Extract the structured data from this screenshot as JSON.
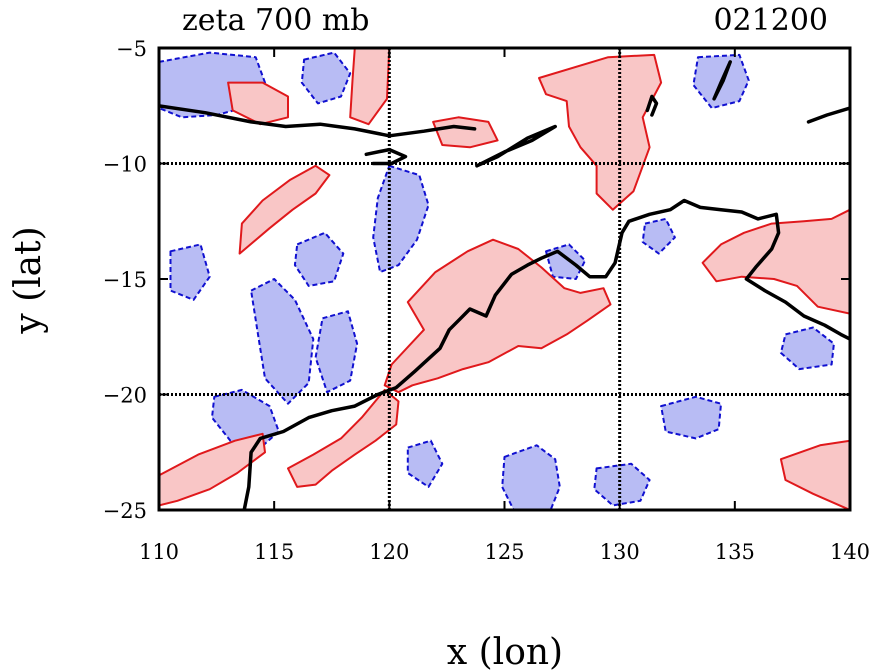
{
  "chart_data": {
    "type": "contour",
    "title": "zeta 700 mb",
    "subtitle": "021200",
    "xlabel": "x (lon)",
    "ylabel": "y (lat)",
    "xlim": [
      110,
      140
    ],
    "ylim": [
      -25,
      -5
    ],
    "x_ticks": [
      110,
      115,
      120,
      125,
      130,
      135,
      140
    ],
    "y_ticks": [
      -5,
      -10,
      -15,
      -20,
      -25
    ],
    "x_tick_labels": [
      "110",
      "115",
      "120",
      "125",
      "130",
      "135",
      "140"
    ],
    "y_tick_labels": [
      "−5",
      "−10",
      "−15",
      "−20",
      "−25"
    ],
    "grid_lines": {
      "x": [
        120,
        130
      ],
      "y": [
        -10,
        -20
      ]
    },
    "grid": "dotted",
    "legend": "none",
    "colors": {
      "positive_fill": "#f9c6c6",
      "positive_line": "#e0191c",
      "negative_fill": "#b8bcf4",
      "negative_line": "#1010d0",
      "coastline": "#000000"
    },
    "positive_regions": [
      [
        [
          126.5,
          -6.3
        ],
        [
          129.5,
          -5.4
        ],
        [
          131.5,
          -5.3
        ],
        [
          131.8,
          -6.5
        ],
        [
          131,
          -8
        ],
        [
          131.3,
          -9.3
        ],
        [
          130.6,
          -11.2
        ],
        [
          129.7,
          -12
        ],
        [
          129,
          -11.3
        ],
        [
          129,
          -10.1
        ],
        [
          128.3,
          -9.3
        ],
        [
          127.8,
          -8.4
        ],
        [
          127.7,
          -7.3
        ],
        [
          126.8,
          -7
        ]
      ],
      [
        [
          120.8,
          -16
        ],
        [
          122,
          -14.7
        ],
        [
          123.4,
          -13.8
        ],
        [
          124.5,
          -13.3
        ],
        [
          125.6,
          -13.7
        ],
        [
          126.6,
          -14.5
        ],
        [
          127.6,
          -15.4
        ],
        [
          128.3,
          -15.6
        ],
        [
          129.3,
          -15.4
        ],
        [
          129.6,
          -16.1
        ],
        [
          128.6,
          -16.8
        ],
        [
          127.7,
          -17.4
        ],
        [
          126.6,
          -18
        ],
        [
          125.6,
          -17.9
        ],
        [
          124.3,
          -18.6
        ],
        [
          123.2,
          -18.9
        ],
        [
          122.1,
          -19.3
        ],
        [
          121,
          -19.6
        ],
        [
          120.4,
          -19.9
        ],
        [
          119.8,
          -19.6
        ],
        [
          120.1,
          -18.7
        ],
        [
          121.5,
          -17.2
        ]
      ],
      [
        [
          119.8,
          -19.8
        ],
        [
          120.4,
          -20.3
        ],
        [
          120.3,
          -21.3
        ],
        [
          119.4,
          -22
        ],
        [
          118.5,
          -22.6
        ],
        [
          117.5,
          -23.3
        ],
        [
          116.8,
          -23.9
        ],
        [
          116,
          -24
        ],
        [
          115.6,
          -23.2
        ],
        [
          116.7,
          -22.6
        ],
        [
          117.9,
          -21.9
        ],
        [
          118.8,
          -21
        ]
      ],
      [
        [
          110,
          -23.5
        ],
        [
          111.7,
          -22.6
        ],
        [
          113.3,
          -22
        ],
        [
          114.5,
          -21.7
        ],
        [
          114.6,
          -22.5
        ],
        [
          113.4,
          -23.4
        ],
        [
          112.2,
          -24.1
        ],
        [
          110.8,
          -24.6
        ],
        [
          110,
          -24.8
        ]
      ],
      [
        [
          113.5,
          -13.9
        ],
        [
          114.8,
          -12.8
        ],
        [
          115.8,
          -12
        ],
        [
          116.8,
          -11.3
        ],
        [
          117.4,
          -10.5
        ],
        [
          116.8,
          -10.1
        ],
        [
          115.7,
          -10.7
        ],
        [
          114.5,
          -11.6
        ],
        [
          113.6,
          -12.6
        ]
      ],
      [
        [
          139.2,
          -12.4
        ],
        [
          140,
          -12
        ],
        [
          140,
          -16.5
        ],
        [
          138.6,
          -16.2
        ],
        [
          137.7,
          -15.3
        ],
        [
          136.7,
          -15
        ],
        [
          135.3,
          -14.9
        ],
        [
          134.2,
          -15.1
        ],
        [
          133.6,
          -14.3
        ],
        [
          134.4,
          -13.5
        ],
        [
          135.4,
          -13
        ],
        [
          136.6,
          -12.6
        ],
        [
          138,
          -12.5
        ]
      ],
      [
        [
          121.9,
          -8.2
        ],
        [
          123,
          -8
        ],
        [
          124.3,
          -8.2
        ],
        [
          124.7,
          -9
        ],
        [
          123.5,
          -9.3
        ],
        [
          122.3,
          -9.2
        ]
      ],
      [
        [
          118.5,
          -5
        ],
        [
          120,
          -5
        ],
        [
          119.9,
          -7.2
        ],
        [
          119.1,
          -8.3
        ],
        [
          118.3,
          -8
        ],
        [
          118.4,
          -6.4
        ]
      ],
      [
        [
          113,
          -6.5
        ],
        [
          114.5,
          -6.5
        ],
        [
          115.6,
          -7.1
        ],
        [
          115.6,
          -8
        ],
        [
          114.4,
          -8.3
        ],
        [
          113.2,
          -7.7
        ]
      ],
      [
        [
          137,
          -22.8
        ],
        [
          138.7,
          -22.2
        ],
        [
          140,
          -22
        ],
        [
          140,
          -25
        ],
        [
          138.4,
          -24.3
        ],
        [
          137.2,
          -23.7
        ]
      ]
    ],
    "negative_regions": [
      [
        [
          110,
          -5.6
        ],
        [
          112.2,
          -5.2
        ],
        [
          114.2,
          -5.4
        ],
        [
          114.6,
          -6.5
        ],
        [
          114,
          -7.5
        ],
        [
          112.5,
          -7.9
        ],
        [
          111,
          -8
        ],
        [
          110,
          -7.6
        ]
      ],
      [
        [
          116.3,
          -5.5
        ],
        [
          117.6,
          -5.2
        ],
        [
          118.3,
          -6.1
        ],
        [
          117.9,
          -7.1
        ],
        [
          116.9,
          -7.4
        ],
        [
          116.2,
          -6.5
        ]
      ],
      [
        [
          120,
          -10.1
        ],
        [
          121.3,
          -10.5
        ],
        [
          121.7,
          -11.8
        ],
        [
          121.2,
          -13.3
        ],
        [
          120.4,
          -14.4
        ],
        [
          119.6,
          -14.7
        ],
        [
          119.3,
          -13.2
        ],
        [
          119.5,
          -11.5
        ]
      ],
      [
        [
          114,
          -15.5
        ],
        [
          115,
          -15
        ],
        [
          115.9,
          -15.9
        ],
        [
          116.7,
          -17.6
        ],
        [
          116.5,
          -19.5
        ],
        [
          115.6,
          -20.4
        ],
        [
          114.6,
          -19.3
        ],
        [
          114.3,
          -17.4
        ]
      ],
      [
        [
          117.1,
          -16.7
        ],
        [
          118.2,
          -16.4
        ],
        [
          118.6,
          -17.8
        ],
        [
          118.3,
          -19.4
        ],
        [
          117.3,
          -19.9
        ],
        [
          116.8,
          -18.4
        ]
      ],
      [
        [
          116,
          -13.5
        ],
        [
          117.2,
          -13
        ],
        [
          118,
          -13.9
        ],
        [
          117.6,
          -15.1
        ],
        [
          116.5,
          -15.3
        ],
        [
          115.9,
          -14.4
        ]
      ],
      [
        [
          110.5,
          -13.8
        ],
        [
          111.8,
          -13.5
        ],
        [
          112.2,
          -14.9
        ],
        [
          111.5,
          -15.9
        ],
        [
          110.5,
          -15.5
        ]
      ],
      [
        [
          112.4,
          -20.1
        ],
        [
          113.6,
          -19.8
        ],
        [
          114.8,
          -20.5
        ],
        [
          115.2,
          -21.6
        ],
        [
          114.3,
          -22.4
        ],
        [
          113.1,
          -22
        ],
        [
          112.3,
          -21
        ]
      ],
      [
        [
          125,
          -22.7
        ],
        [
          126.4,
          -22.2
        ],
        [
          127.2,
          -22.8
        ],
        [
          127.4,
          -24
        ],
        [
          127,
          -25
        ],
        [
          125.4,
          -25
        ],
        [
          124.9,
          -24
        ]
      ],
      [
        [
          129,
          -23.2
        ],
        [
          130.5,
          -23
        ],
        [
          131.3,
          -23.7
        ],
        [
          130.9,
          -24.6
        ],
        [
          129.7,
          -24.8
        ],
        [
          128.9,
          -24.1
        ]
      ],
      [
        [
          131.8,
          -20.5
        ],
        [
          133.3,
          -20.1
        ],
        [
          134.4,
          -20.4
        ],
        [
          134.3,
          -21.5
        ],
        [
          133.3,
          -21.9
        ],
        [
          132,
          -21.6
        ]
      ],
      [
        [
          133.4,
          -5.4
        ],
        [
          135.2,
          -5.3
        ],
        [
          135.6,
          -6.4
        ],
        [
          135.2,
          -7.3
        ],
        [
          134,
          -7.6
        ],
        [
          133.2,
          -6.6
        ]
      ],
      [
        [
          137.2,
          -17.4
        ],
        [
          138.4,
          -17.1
        ],
        [
          139.3,
          -17.8
        ],
        [
          139.2,
          -18.7
        ],
        [
          137.8,
          -18.9
        ],
        [
          137,
          -18.2
        ]
      ],
      [
        [
          125,
          -15.7
        ],
        [
          125.7,
          -15.5
        ],
        [
          126.2,
          -16.2
        ],
        [
          126,
          -17
        ],
        [
          125.2,
          -17
        ],
        [
          124.9,
          -16.3
        ]
      ],
      [
        [
          126.8,
          -13.8
        ],
        [
          127.8,
          -13.5
        ],
        [
          128.5,
          -14.2
        ],
        [
          128.1,
          -15
        ],
        [
          127.1,
          -14.9
        ]
      ],
      [
        [
          131.1,
          -12.6
        ],
        [
          132,
          -12.4
        ],
        [
          132.4,
          -13.2
        ],
        [
          131.7,
          -13.9
        ],
        [
          131,
          -13.4
        ]
      ],
      [
        [
          120.8,
          -22.3
        ],
        [
          121.8,
          -22
        ],
        [
          122.3,
          -23
        ],
        [
          121.7,
          -24
        ],
        [
          120.8,
          -23.4
        ]
      ]
    ],
    "coastline_segments": [
      [
        [
          110,
          -7.5
        ],
        [
          112,
          -7.8
        ],
        [
          114,
          -8.2
        ],
        [
          115.5,
          -8.4
        ],
        [
          117,
          -8.3
        ],
        [
          118.5,
          -8.5
        ],
        [
          120,
          -8.8
        ],
        [
          121.5,
          -8.6
        ],
        [
          122.8,
          -8.4
        ],
        [
          123.7,
          -8.5
        ]
      ],
      [
        [
          119,
          -9.6
        ],
        [
          120,
          -9.4
        ],
        [
          120.7,
          -9.7
        ],
        [
          120.1,
          -10
        ],
        [
          119.3,
          -10
        ]
      ],
      [
        [
          123.8,
          -10.1
        ],
        [
          125,
          -9.5
        ],
        [
          126.2,
          -9
        ],
        [
          127.2,
          -8.4
        ],
        [
          126,
          -8.9
        ],
        [
          124.7,
          -9.7
        ],
        [
          123.8,
          -10.1
        ]
      ],
      [
        [
          138.2,
          -8.2
        ],
        [
          139,
          -7.9
        ],
        [
          140,
          -7.6
        ]
      ],
      [
        [
          134.1,
          -7.2
        ],
        [
          134.5,
          -6.4
        ],
        [
          134.8,
          -5.6
        ],
        [
          134.4,
          -6.5
        ],
        [
          134.1,
          -7.2
        ]
      ],
      [
        [
          131.4,
          -7.9
        ],
        [
          131.6,
          -7.4
        ],
        [
          131.4,
          -7.1
        ],
        [
          131.2,
          -7.7
        ]
      ],
      [
        [
          113.7,
          -25
        ],
        [
          113.9,
          -24
        ],
        [
          114,
          -22.5
        ],
        [
          114.4,
          -21.9
        ],
        [
          115.4,
          -21.6
        ],
        [
          116.5,
          -21
        ],
        [
          117.5,
          -20.7
        ],
        [
          118.5,
          -20.5
        ],
        [
          119.5,
          -20
        ],
        [
          120.3,
          -19.7
        ],
        [
          121.1,
          -19
        ],
        [
          122.2,
          -18
        ],
        [
          122.6,
          -17.2
        ],
        [
          123.1,
          -16.7
        ],
        [
          123.5,
          -16.3
        ],
        [
          124.2,
          -16.6
        ],
        [
          124.6,
          -15.7
        ],
        [
          125.3,
          -14.8
        ],
        [
          126,
          -14.4
        ],
        [
          126.6,
          -14.1
        ],
        [
          127.3,
          -13.8
        ],
        [
          128.1,
          -14.4
        ],
        [
          128.7,
          -14.9
        ],
        [
          129.4,
          -14.9
        ],
        [
          129.8,
          -14.3
        ],
        [
          130.1,
          -13
        ],
        [
          130.4,
          -12.5
        ],
        [
          131.3,
          -12.2
        ],
        [
          132.2,
          -12
        ],
        [
          132.8,
          -11.6
        ],
        [
          133.5,
          -11.9
        ],
        [
          134.4,
          -12
        ],
        [
          135.3,
          -12.1
        ],
        [
          136,
          -12.4
        ],
        [
          136.8,
          -12.2
        ],
        [
          136.9,
          -13
        ],
        [
          136.6,
          -13.7
        ],
        [
          135.9,
          -14.5
        ],
        [
          135.5,
          -15
        ],
        [
          136.3,
          -15.5
        ],
        [
          137.2,
          -16
        ],
        [
          138,
          -16.6
        ],
        [
          138.9,
          -17
        ],
        [
          139.6,
          -17.4
        ],
        [
          140,
          -17.6
        ]
      ]
    ]
  }
}
